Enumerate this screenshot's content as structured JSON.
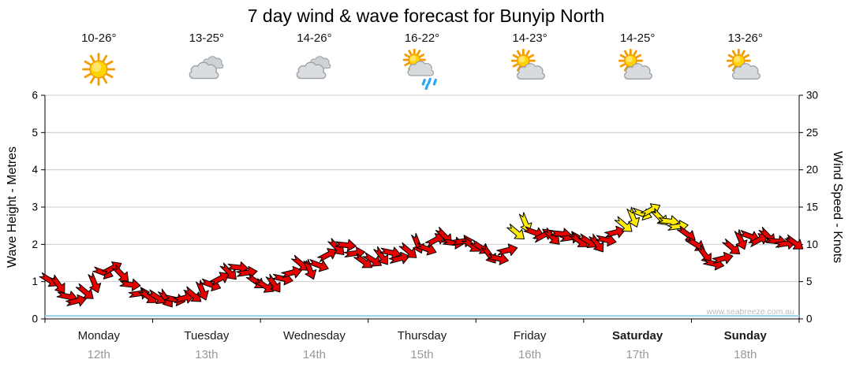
{
  "title": "7 day wind & wave forecast for Bunyip North",
  "watermark": "www.seabreeze.com.au",
  "days": [
    {
      "name": "Monday",
      "date": "12th",
      "temp": "10-26°",
      "icon": "sun",
      "bold": false
    },
    {
      "name": "Tuesday",
      "date": "13th",
      "temp": "13-25°",
      "icon": "clouds",
      "bold": false
    },
    {
      "name": "Wednesday",
      "date": "14th",
      "temp": "14-26°",
      "icon": "clouds",
      "bold": false
    },
    {
      "name": "Thursday",
      "date": "15th",
      "temp": "16-22°",
      "icon": "sun-cloud-rain",
      "bold": false
    },
    {
      "name": "Friday",
      "date": "16th",
      "temp": "14-23°",
      "icon": "sun-cloud",
      "bold": false
    },
    {
      "name": "Saturday",
      "date": "17th",
      "temp": "14-25°",
      "icon": "sun-cloud",
      "bold": true
    },
    {
      "name": "Sunday",
      "date": "18th",
      "temp": "13-26°",
      "icon": "sun-cloud",
      "bold": true
    }
  ],
  "chart_data": {
    "type": "line",
    "title": "7 day wind & wave forecast for Bunyip North",
    "grid_color": "#cccccc",
    "left_axis": {
      "label": "Wave Height - Metres",
      "range": [
        0,
        6
      ],
      "ticks": [
        0,
        1,
        2,
        3,
        4,
        5,
        6
      ]
    },
    "right_axis": {
      "label": "Wind Speed - Knots",
      "range": [
        0,
        30
      ],
      "ticks": [
        0,
        5,
        10,
        15,
        20,
        25,
        30
      ]
    },
    "x_categories": [
      "Monday 12th",
      "Tuesday 13th",
      "Wednesday 14th",
      "Thursday 15th",
      "Friday 16th",
      "Saturday 17th",
      "Sunday 18th"
    ],
    "wind_series": {
      "name": "Wind Speed",
      "units": "knots",
      "samples_per_day": 12,
      "knots": [
        5.2,
        4.6,
        3.0,
        2.4,
        3.6,
        4.8,
        6.2,
        6.8,
        6.0,
        4.6,
        3.4,
        3.0,
        2.9,
        2.7,
        2.6,
        2.8,
        3.2,
        3.8,
        4.6,
        5.4,
        6.3,
        6.9,
        6.2,
        5.0,
        4.4,
        4.7,
        5.4,
        6.2,
        7.4,
        6.6,
        7.2,
        8.6,
        9.6,
        9.9,
        8.8,
        7.7,
        7.9,
        8.4,
        8.9,
        8.1,
        9.1,
        10.1,
        9.4,
        10.6,
        11.1,
        10.2,
        10.4,
        9.9,
        9.6,
        8.6,
        8.1,
        9.2,
        11.6,
        12.9,
        11.6,
        11.2,
        11.0,
        11.4,
        10.9,
        10.5,
        10.4,
        10.1,
        10.6,
        11.6,
        12.6,
        13.6,
        14.1,
        14.6,
        13.6,
        13.1,
        12.4,
        11.4,
        10.0,
        8.6,
        7.4,
        8.1,
        9.6,
        10.6,
        11.1,
        10.6,
        11.1,
        10.4,
        10.1,
        10.2
      ],
      "direction_angles_deg_pattern": [
        32,
        54,
        12,
        -14,
        40,
        68,
        20,
        -28,
        46,
        6,
        -8,
        36
      ],
      "colors_sequence": "rrrrrrrrrrrrrrrrrrrrrrrrrrrrrrrrrrrrrrrrrrrrrrrrrrrryyrrrrrrrrrryyyyyyyrrrrrrrrrrrrr",
      "colors": {
        "r": "#e60000",
        "y": "#ffec00"
      }
    },
    "wave_series": {
      "name": "Wave Height",
      "units": "metres",
      "constant_value": 0.08,
      "color": "#a6d7e8"
    }
  }
}
